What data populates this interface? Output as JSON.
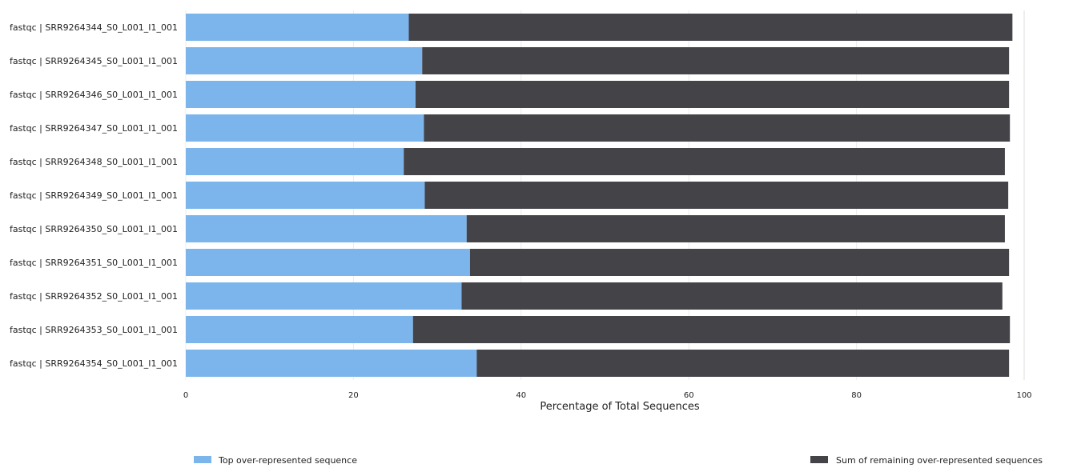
{
  "chart_data": {
    "type": "bar",
    "orientation": "horizontal",
    "stacked": true,
    "categories": [
      "fastqc | SRR9264344_S0_L001_I1_001",
      "fastqc | SRR9264345_S0_L001_I1_001",
      "fastqc | SRR9264346_S0_L001_I1_001",
      "fastqc | SRR9264347_S0_L001_I1_001",
      "fastqc | SRR9264348_S0_L001_I1_001",
      "fastqc | SRR9264349_S0_L001_I1_001",
      "fastqc | SRR9264350_S0_L001_I1_001",
      "fastqc | SRR9264351_S0_L001_I1_001",
      "fastqc | SRR9264352_S0_L001_I1_001",
      "fastqc | SRR9264353_S0_L001_I1_001",
      "fastqc | SRR9264354_S0_L001_I1_001"
    ],
    "series": [
      {
        "name": "Top over-represented sequence",
        "color": "#7cb5ec",
        "values": [
          26.6,
          28.2,
          27.4,
          28.4,
          26.0,
          28.5,
          33.5,
          33.9,
          32.9,
          27.1,
          34.7
        ]
      },
      {
        "name": "Sum of remaining over-represented sequences",
        "color": "#434348",
        "values": [
          72.0,
          70.0,
          70.8,
          69.9,
          71.7,
          69.6,
          64.2,
          64.3,
          64.5,
          71.2,
          63.5
        ]
      }
    ],
    "xlabel": "Percentage of Total Sequences",
    "xlim": [
      0,
      100
    ],
    "xticks": [
      0,
      20,
      40,
      60,
      80,
      100
    ],
    "grid": true,
    "legend_position": "bottom"
  }
}
